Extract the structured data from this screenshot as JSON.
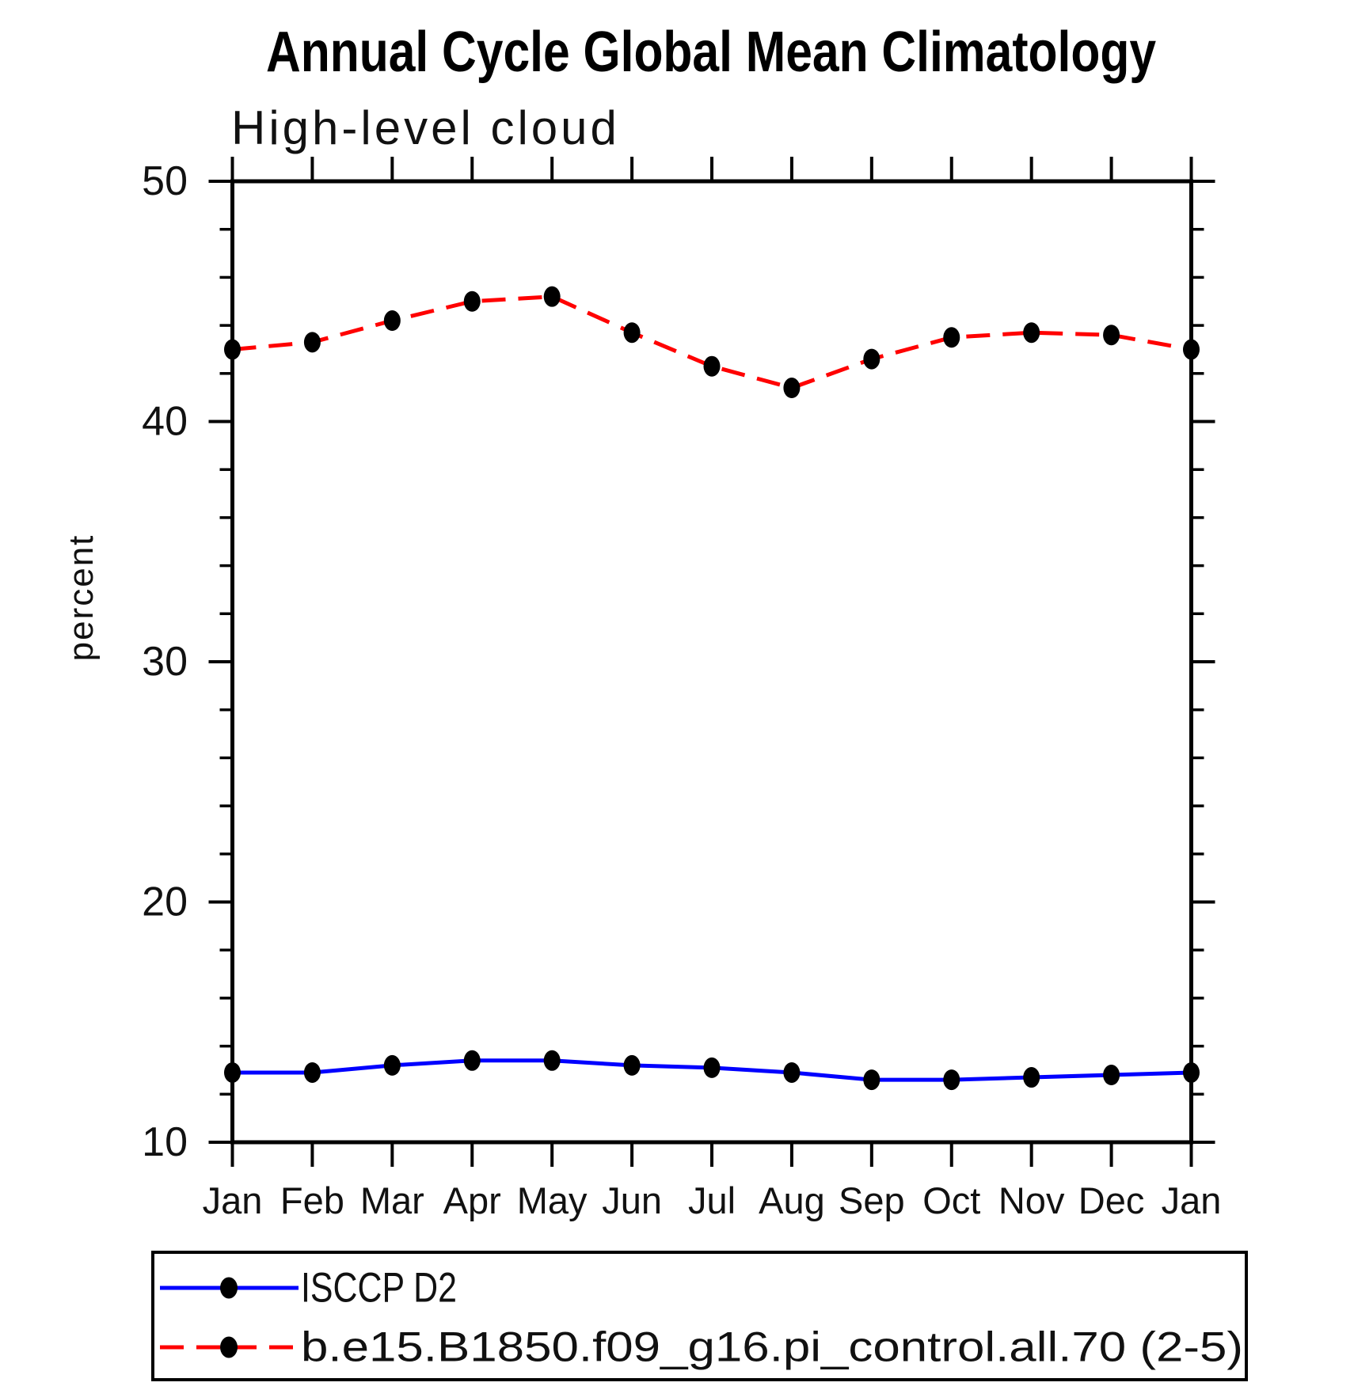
{
  "title": "Annual Cycle Global Mean Climatology",
  "subtitle": "High-level cloud",
  "ylabel": "percent",
  "chart_data": {
    "type": "line",
    "title": "Annual Cycle Global Mean Climatology",
    "subtitle": "High-level cloud",
    "xlabel": "",
    "ylabel": "percent",
    "categories": [
      "Jan",
      "Feb",
      "Mar",
      "Apr",
      "May",
      "Jun",
      "Jul",
      "Aug",
      "Sep",
      "Oct",
      "Nov",
      "Dec",
      "Jan"
    ],
    "ylim": [
      10,
      50
    ],
    "yticks_major": [
      10,
      20,
      30,
      40,
      50
    ],
    "ytick_minor_step": 2,
    "grid": false,
    "legend_position": "bottom-left-box",
    "marker": "filled-circle",
    "marker_color": "#000000",
    "series": [
      {
        "name": "ISCCP D2",
        "color": "#0000ff",
        "line_style": "solid",
        "values": [
          12.9,
          12.9,
          13.2,
          13.4,
          13.4,
          13.2,
          13.1,
          12.9,
          12.6,
          12.6,
          12.7,
          12.8,
          12.9
        ]
      },
      {
        "name": "b.e15.B1850.f09_g16.pi_control.all.70 (2-5)",
        "color": "#ff0000",
        "line_style": "dashed",
        "values": [
          43.0,
          43.3,
          44.2,
          45.0,
          45.2,
          43.7,
          42.3,
          41.4,
          42.6,
          43.5,
          43.7,
          43.6,
          43.0
        ]
      }
    ]
  }
}
